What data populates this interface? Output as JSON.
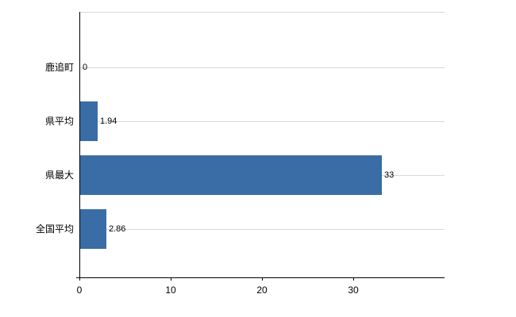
{
  "chart_data": {
    "type": "bar",
    "orientation": "horizontal",
    "categories": [
      "鹿追町",
      "県平均",
      "県最大",
      "全国平均"
    ],
    "values": [
      0,
      1.94,
      33,
      2.86
    ],
    "value_labels": [
      "0",
      "1.94",
      "33",
      "2.86"
    ],
    "x_ticks": [
      0,
      10,
      20,
      30
    ],
    "x_tick_labels": [
      "0",
      "10",
      "20",
      "30"
    ],
    "xlim": [
      0,
      40
    ],
    "grid": true,
    "legend": false,
    "title": "",
    "xlabel": "",
    "ylabel": "",
    "bar_color": "#3a6ca6",
    "gridline_color": "#d9d9d9",
    "axis_color": "#000000",
    "text_color": "#000000",
    "background_color": "#ffffff"
  }
}
